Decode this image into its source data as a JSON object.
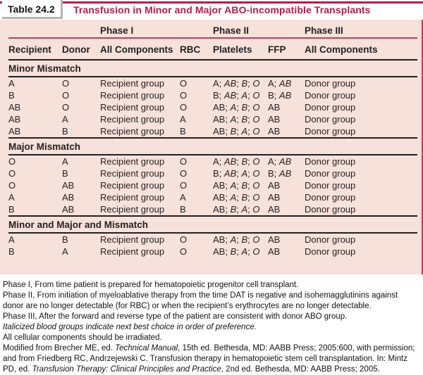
{
  "table": {
    "tab_label": "Table 24.2",
    "title": "Transfusion in Minor and Major ABO-incompatible Transplants",
    "phases": [
      "Phase I",
      "Phase II",
      "Phase III"
    ],
    "columns": [
      "Recipient",
      "Donor",
      "All Components",
      "RBC",
      "Platelets",
      "FFP",
      "All Components"
    ],
    "list_separator": "; ",
    "sections": [
      {
        "name": "Minor Mismatch",
        "rows": [
          {
            "recipient": "A",
            "donor": "O",
            "phase1_all_components": "Recipient group",
            "rbc": "O",
            "platelets": {
              "first": "A",
              "next_best": [
                "AB",
                "B",
                "O"
              ]
            },
            "ffp": {
              "first": "A",
              "next_best": [
                "AB"
              ]
            },
            "phase3_all_components": "Donor group"
          },
          {
            "recipient": "B",
            "donor": "O",
            "phase1_all_components": "Recipient group",
            "rbc": "O",
            "platelets": {
              "first": "B",
              "next_best": [
                "AB",
                "A",
                "O"
              ]
            },
            "ffp": {
              "first": "B",
              "next_best": [
                "AB"
              ]
            },
            "phase3_all_components": "Donor group"
          },
          {
            "recipient": "AB",
            "donor": "O",
            "phase1_all_components": "Recipient group",
            "rbc": "O",
            "platelets": {
              "first": "AB",
              "next_best": [
                "A",
                "B",
                "O"
              ]
            },
            "ffp": {
              "first": "AB",
              "next_best": []
            },
            "phase3_all_components": "Donor group"
          },
          {
            "recipient": "AB",
            "donor": "A",
            "phase1_all_components": "Recipient group",
            "rbc": "A",
            "platelets": {
              "first": "AB",
              "next_best": [
                "A",
                "B",
                "O"
              ]
            },
            "ffp": {
              "first": "AB",
              "next_best": []
            },
            "phase3_all_components": "Donor group"
          },
          {
            "recipient": "AB",
            "donor": "B",
            "phase1_all_components": "Recipient group",
            "rbc": "B",
            "platelets": {
              "first": "AB",
              "next_best": [
                "B",
                "A",
                "O"
              ]
            },
            "ffp": {
              "first": "AB",
              "next_best": []
            },
            "phase3_all_components": "Donor group"
          }
        ]
      },
      {
        "name": "Major Mismatch",
        "rows": [
          {
            "recipient": "O",
            "donor": "A",
            "phase1_all_components": "Recipient group",
            "rbc": "O",
            "platelets": {
              "first": "A",
              "next_best": [
                "AB",
                "B",
                "O"
              ]
            },
            "ffp": {
              "first": "A",
              "next_best": [
                "AB"
              ]
            },
            "phase3_all_components": "Donor group"
          },
          {
            "recipient": "O",
            "donor": "B",
            "phase1_all_components": "Recipient group",
            "rbc": "O",
            "platelets": {
              "first": "B",
              "next_best": [
                "AB",
                "A",
                "O"
              ]
            },
            "ffp": {
              "first": "B",
              "next_best": [
                "AB"
              ]
            },
            "phase3_all_components": "Donor group"
          },
          {
            "recipient": "O",
            "donor": "AB",
            "phase1_all_components": "Recipient group",
            "rbc": "O",
            "platelets": {
              "first": "AB",
              "next_best": [
                "A",
                "B",
                "O"
              ]
            },
            "ffp": {
              "first": "AB",
              "next_best": []
            },
            "phase3_all_components": "Donor group"
          },
          {
            "recipient": "A",
            "donor": "AB",
            "phase1_all_components": "Recipient group",
            "rbc": "A",
            "platelets": {
              "first": "AB",
              "next_best": [
                "A",
                "B",
                "O"
              ]
            },
            "ffp": {
              "first": "AB",
              "next_best": []
            },
            "phase3_all_components": "Donor group"
          },
          {
            "recipient": "B",
            "donor": "AB",
            "phase1_all_components": "Recipient group",
            "rbc": "B",
            "platelets": {
              "first": "AB",
              "next_best": [
                "B",
                "A",
                "O"
              ]
            },
            "ffp": {
              "first": "AB",
              "next_best": []
            },
            "phase3_all_components": "Donor group"
          }
        ]
      },
      {
        "name": "Minor and Major and Mismatch",
        "rows": [
          {
            "recipient": "A",
            "donor": "B",
            "phase1_all_components": "Recipient group",
            "rbc": "O",
            "platelets": {
              "first": "AB",
              "next_best": [
                "A",
                "B",
                "O"
              ]
            },
            "ffp": {
              "first": "AB",
              "next_best": []
            },
            "phase3_all_components": "Donor group"
          },
          {
            "recipient": "B",
            "donor": "A",
            "phase1_all_components": "Recipient group",
            "rbc": "O",
            "platelets": {
              "first": "AB",
              "next_best": [
                "B",
                "A",
                "O"
              ]
            },
            "ffp": {
              "first": "AB",
              "next_best": []
            },
            "phase3_all_components": "Donor group"
          }
        ]
      }
    ]
  },
  "footnotes": [
    [
      {
        "t": "Phase I, From time patient is prepared for hematopoietic progenitor cell transplant.",
        "i": false
      }
    ],
    [
      {
        "t": "Phase II, From initiation of myeloablative therapy from the time DAT is negative and isohemagglutinins against donor are no longer detectable (for RBC) or when the recipient’s erythrocytes are no longer detectable.",
        "i": false
      }
    ],
    [
      {
        "t": "Phase III, After the forward and reverse type of the patient are consistent with donor ABO group.",
        "i": false
      }
    ],
    [
      {
        "t": "Italicized blood groups indicate next best choice in order of preference.",
        "i": true
      }
    ],
    [
      {
        "t": "All cellular components should be irradiated.",
        "i": false
      }
    ],
    [
      {
        "t": "Modified from Brecher ME, ed. ",
        "i": false
      },
      {
        "t": "Technical Manual",
        "i": true
      },
      {
        "t": ", 15th ed. Bethesda, MD: AABB Press; 2005:600, with permission; and from Friedberg RC, Andrzejewski C. Transfusion therapy in hematopoietic stem cell transplantation. In: Mintz PD, ed. ",
        "i": false
      },
      {
        "t": "Transfusion Therapy: Clinical Principles and Practice",
        "i": true
      },
      {
        "t": ", 2nd ed. Bethesda, MD: AABB Press; 2005.",
        "i": false
      }
    ]
  ],
  "colors": {
    "accent_crimson": "#b11e4c",
    "rule_crimson": "#c23a5e",
    "table_background": "#f7e1db",
    "rule_black": "#231f20",
    "tab_shadow": "#b5b5b5"
  }
}
